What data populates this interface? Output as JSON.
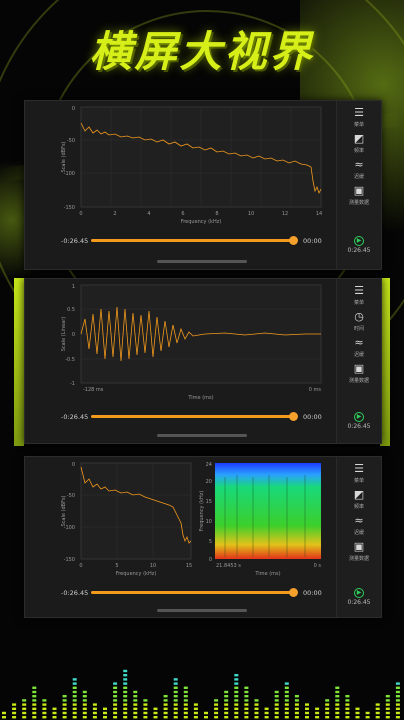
{
  "headline": "横屏大视界",
  "colors": {
    "accent": "#d7ef18",
    "wave": "#f39a1c",
    "play": "#2dcf5a"
  },
  "panel1": {
    "y_axis_label": "Scale (dBFs)",
    "x_axis_label": "Frequency (kHz)",
    "y_ticks": [
      "0",
      "-50",
      "-100",
      "-150"
    ],
    "x_ticks": [
      "0",
      "2",
      "4",
      "6",
      "8",
      "10",
      "12",
      "14"
    ],
    "time_left": "-0:26.45",
    "time_right": "00:00",
    "progress": 1.0,
    "side": [
      {
        "icon": "menu-icon",
        "label": "菜单"
      },
      {
        "icon": "bypass-icon",
        "label": "频率"
      },
      {
        "icon": "trend-icon",
        "label": "迟缓"
      },
      {
        "icon": "record-icon",
        "label": "测量数据"
      }
    ],
    "play_time": "0:26.45"
  },
  "panel2": {
    "y_axis_label": "Scale (Linear)",
    "x_axis_label": "Time (ms)",
    "y_ticks": [
      "1",
      "0.5",
      "0",
      "-0.5",
      "-1"
    ],
    "x_left": "-128 ms",
    "x_right": "0 ms",
    "time_left": "-0:26.45",
    "time_right": "00:00",
    "progress": 1.0,
    "side": [
      {
        "icon": "menu-icon",
        "label": "菜单"
      },
      {
        "icon": "timer-icon",
        "label": "时间"
      },
      {
        "icon": "trend-icon",
        "label": "迟缓"
      },
      {
        "icon": "record-icon",
        "label": "测量数据"
      }
    ],
    "play_time": "0:26.45"
  },
  "panel3": {
    "y_axis_label": "Scale (dBFs)",
    "x_axis_label": "Frequency (kHz)",
    "y_ticks": [
      "0",
      "-50",
      "-100",
      "-150"
    ],
    "x_ticks": [
      "0",
      "5",
      "10",
      "15"
    ],
    "spec_y_label": "Frequency (kHz)",
    "spec_y_ticks": [
      "24",
      "20",
      "15",
      "10",
      "5",
      "0"
    ],
    "spec_x_label": "Time (ms)",
    "spec_x_left": "21.8453 s",
    "spec_x_right": "0 s",
    "time_left": "-0:26.45",
    "time_right": "00:00",
    "progress": 1.0,
    "side": [
      {
        "icon": "menu-icon",
        "label": "菜单"
      },
      {
        "icon": "bypass-icon",
        "label": "频率"
      },
      {
        "icon": "trend-icon",
        "label": "迟缓"
      },
      {
        "icon": "record-icon",
        "label": "测量数据"
      }
    ],
    "play_time": "0:26.45"
  }
}
